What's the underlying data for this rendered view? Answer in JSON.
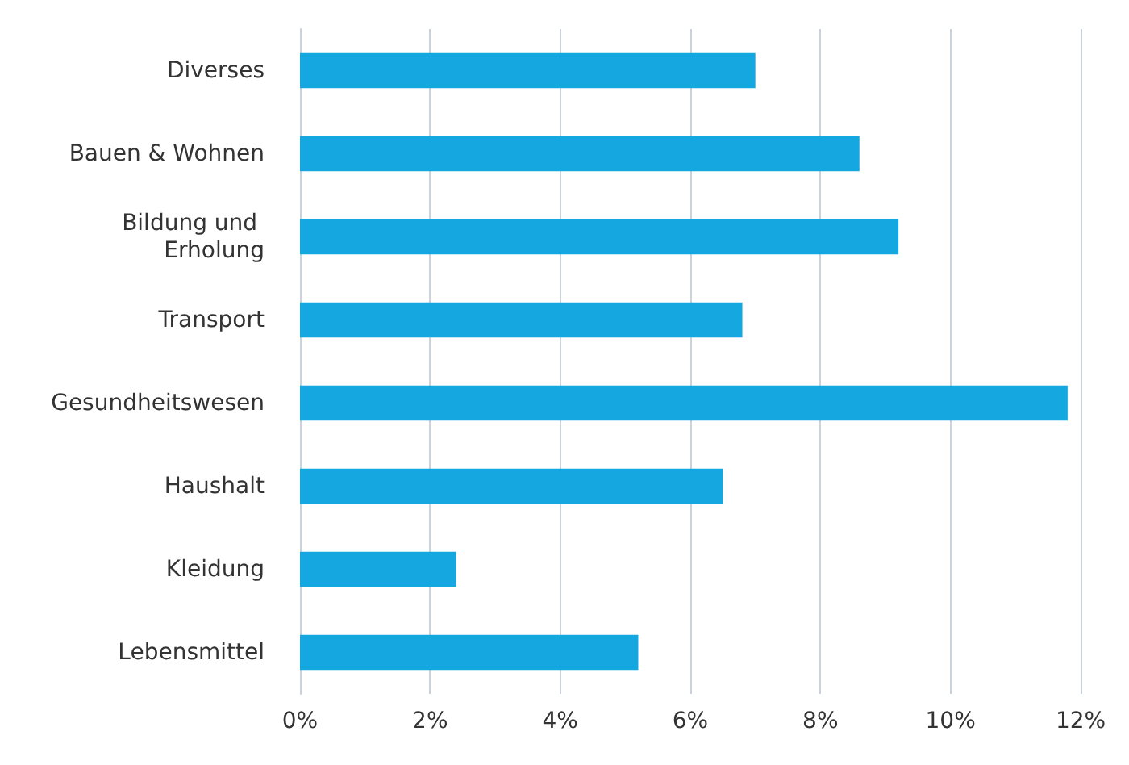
{
  "chart_data": {
    "type": "bar",
    "orientation": "horizontal",
    "categories": [
      "Diverses",
      "Bauen & Wohnen",
      "Bildung und Erholung",
      "Transport",
      "Gesundheitswesen",
      "Haushalt",
      "Kleidung",
      "Lebensmittel"
    ],
    "values": [
      7.0,
      8.6,
      9.2,
      6.8,
      11.8,
      6.5,
      2.4,
      5.2
    ],
    "color": "#15a8e0",
    "xlim": [
      0,
      12
    ],
    "xticks": [
      {
        "value": 0,
        "label": "0%"
      },
      {
        "value": 2,
        "label": "2%"
      },
      {
        "value": 4,
        "label": "4%"
      },
      {
        "value": 6,
        "label": "6%"
      },
      {
        "value": 8,
        "label": "8%"
      },
      {
        "value": 10,
        "label": "10%"
      },
      {
        "value": 12,
        "label": "12%"
      }
    ],
    "grid": "x"
  }
}
